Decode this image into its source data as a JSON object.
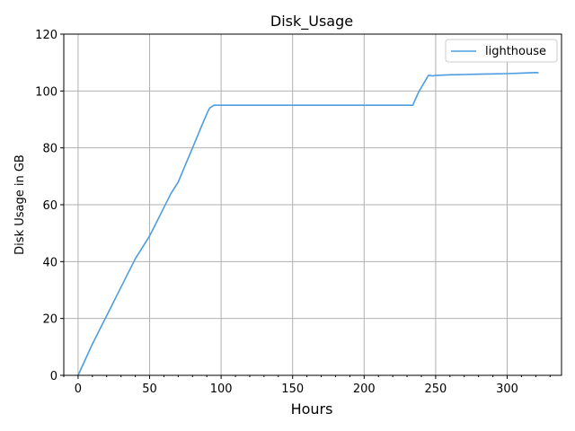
{
  "chart_data": {
    "type": "line",
    "title": "Disk_Usage",
    "xlabel": "Hours",
    "ylabel": "Disk Usage in GB",
    "xlim": [
      -10,
      338
    ],
    "ylim": [
      0,
      120
    ],
    "xticks": [
      0,
      50,
      100,
      150,
      200,
      250,
      300
    ],
    "yticks": [
      0,
      20,
      40,
      60,
      80,
      100,
      120
    ],
    "grid": true,
    "legend_position": "top-right",
    "series": [
      {
        "name": "lighthouse",
        "color": "#4c9de0",
        "x": [
          0,
          10,
          20,
          30,
          40,
          50,
          55,
          60,
          65,
          70,
          75,
          80,
          85,
          90,
          92,
          95,
          100,
          110,
          120,
          130,
          140,
          150,
          160,
          170,
          180,
          190,
          200,
          210,
          220,
          230,
          234,
          238,
          242,
          245,
          248,
          250,
          260,
          270,
          280,
          290,
          300,
          310,
          320,
          322
        ],
        "y": [
          0,
          11,
          21,
          31,
          41,
          49,
          54,
          59,
          64,
          68,
          74,
          80,
          86,
          92,
          94,
          95,
          95,
          95,
          95,
          95,
          95,
          95,
          95,
          95,
          95,
          95,
          95,
          95,
          95,
          95,
          95,
          99.5,
          103,
          105.5,
          105.3,
          105.5,
          105.7,
          105.8,
          105.9,
          106,
          106.1,
          106.3,
          106.5,
          106.4
        ]
      }
    ]
  }
}
